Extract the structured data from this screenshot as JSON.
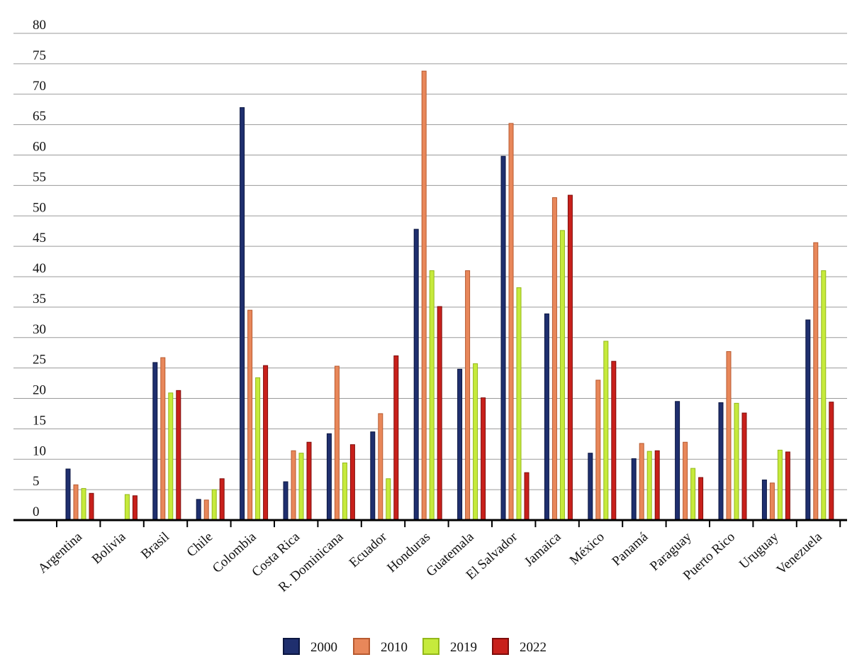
{
  "chart_data": {
    "type": "bar",
    "title": "",
    "xlabel": "",
    "ylabel": "",
    "ylim": [
      0,
      80
    ],
    "yticks": [
      0,
      5,
      10,
      15,
      20,
      25,
      30,
      35,
      40,
      45,
      50,
      55,
      60,
      65,
      70,
      75,
      80
    ],
    "grid": true,
    "legend_position": "bottom-center",
    "categories": [
      "Argentina",
      "Bolivia",
      "Brasil",
      "Chile",
      "Colombia",
      "Costa Rica",
      "R. Dominicana",
      "Ecuador",
      "Honduras",
      "Guatemala",
      "El Salvador",
      "Jamaica",
      "México",
      "Panamá",
      "Paraguay",
      "Puerto Rico",
      "Uruguay",
      "Venezuela"
    ],
    "series": [
      {
        "name": "2000",
        "fill": "#1f2f6e",
        "edge": "#0b1640",
        "values": [
          8.4,
          null,
          25.9,
          3.4,
          67.8,
          6.3,
          14.2,
          14.5,
          47.8,
          24.8,
          59.8,
          33.9,
          11.0,
          10.1,
          19.5,
          19.3,
          6.6,
          32.9
        ]
      },
      {
        "name": "2010",
        "fill": "#e8875a",
        "edge": "#b75a30",
        "values": [
          5.8,
          null,
          26.7,
          3.3,
          34.5,
          11.4,
          25.3,
          17.5,
          73.8,
          41.0,
          65.2,
          53.0,
          23.0,
          12.6,
          12.8,
          27.7,
          6.1,
          45.6
        ]
      },
      {
        "name": "2019",
        "fill": "#c6ea3c",
        "edge": "#93b81a",
        "values": [
          5.2,
          4.2,
          20.9,
          5.0,
          23.4,
          11.0,
          9.4,
          6.8,
          41.0,
          25.7,
          38.2,
          47.6,
          29.4,
          11.3,
          8.5,
          19.2,
          11.5,
          41.0
        ]
      },
      {
        "name": "2022",
        "fill": "#c8201b",
        "edge": "#7e0d0b",
        "values": [
          4.4,
          4.0,
          21.3,
          6.8,
          25.4,
          12.8,
          12.4,
          27.0,
          35.1,
          20.1,
          7.8,
          53.4,
          26.1,
          11.4,
          7.0,
          17.6,
          11.2,
          19.4
        ]
      }
    ]
  }
}
